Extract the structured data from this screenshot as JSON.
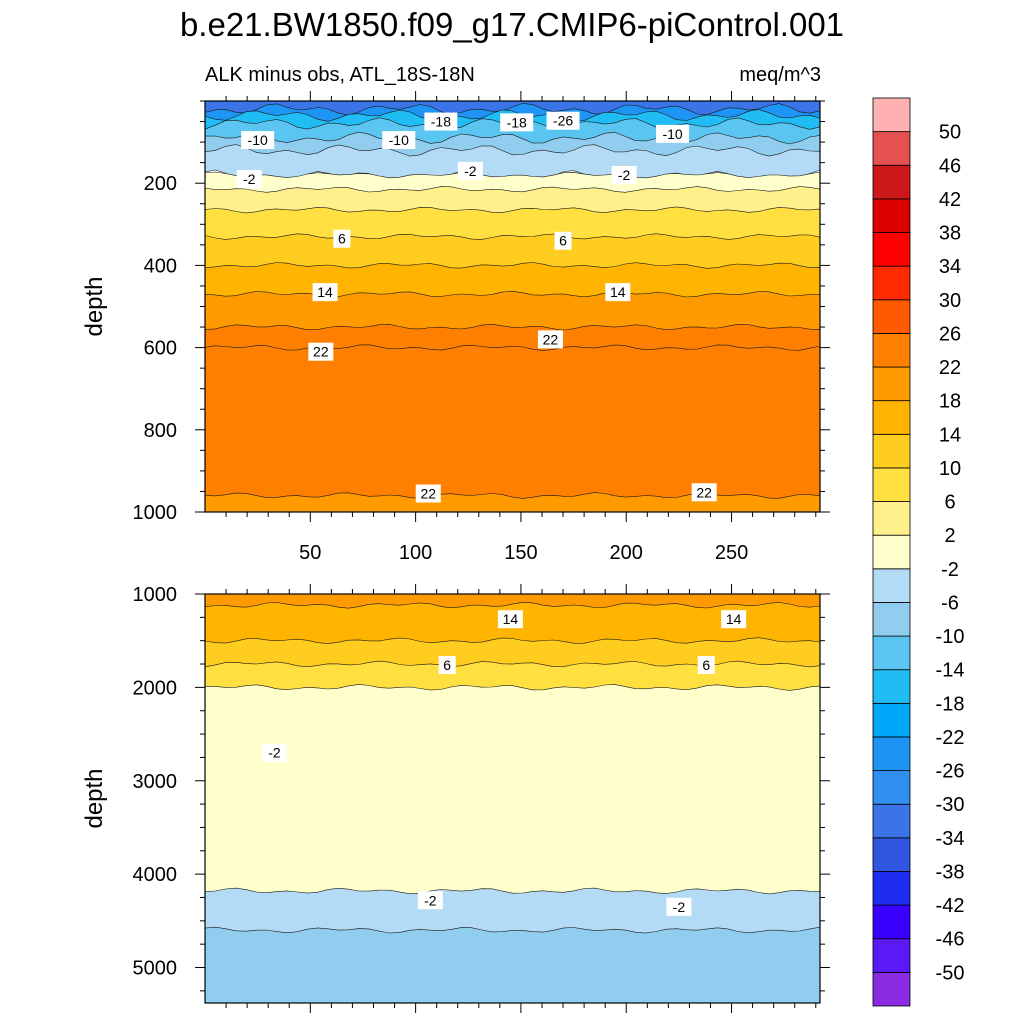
{
  "figure": {
    "title": "b.e21.BW1850.f09_g17.CMIP6-piControl.001",
    "left_string": "ALK minus obs, ATL_18S-18N",
    "right_string": "meq/m^3"
  },
  "chart_data": [
    {
      "type": "heatmap",
      "panel": "upper",
      "xlabel": "",
      "ylabel": "depth",
      "xlim": [
        0,
        292
      ],
      "ylim": [
        1000,
        0
      ],
      "xticks": [
        50,
        100,
        150,
        200,
        250
      ],
      "yticks": [
        200,
        400,
        600,
        800,
        1000
      ],
      "contour_bands": [
        {
          "from": 0,
          "to": 20,
          "level": -34
        },
        {
          "from": 20,
          "to": 35,
          "level": -26
        },
        {
          "from": 35,
          "to": 55,
          "level": -18
        },
        {
          "from": 55,
          "to": 90,
          "level": -14
        },
        {
          "from": 90,
          "to": 120,
          "level": -10
        },
        {
          "from": 120,
          "to": 180,
          "level": -6
        },
        {
          "from": 180,
          "to": 215,
          "level": -2
        },
        {
          "from": 215,
          "to": 265,
          "level": 2
        },
        {
          "from": 265,
          "to": 330,
          "level": 6
        },
        {
          "from": 330,
          "to": 400,
          "level": 10
        },
        {
          "from": 400,
          "to": 470,
          "level": 14
        },
        {
          "from": 470,
          "to": 550,
          "level": 18
        },
        {
          "from": 550,
          "to": 600,
          "level": 22
        },
        {
          "from": 600,
          "to": 960,
          "level": 22
        },
        {
          "from": 960,
          "to": 1000,
          "level": 18
        }
      ],
      "contour_labels": [
        {
          "x": 25,
          "y": 95,
          "text": "-10"
        },
        {
          "x": 92,
          "y": 95,
          "text": "-10"
        },
        {
          "x": 112,
          "y": 50,
          "text": "-18"
        },
        {
          "x": 148,
          "y": 52,
          "text": "-18"
        },
        {
          "x": 170,
          "y": 48,
          "text": "-26"
        },
        {
          "x": 222,
          "y": 80,
          "text": "-10"
        },
        {
          "x": 21,
          "y": 190,
          "text": "-2"
        },
        {
          "x": 126,
          "y": 170,
          "text": "-2"
        },
        {
          "x": 199,
          "y": 180,
          "text": "-2"
        },
        {
          "x": 65,
          "y": 335,
          "text": "6"
        },
        {
          "x": 170,
          "y": 340,
          "text": "6"
        },
        {
          "x": 57,
          "y": 465,
          "text": "14"
        },
        {
          "x": 196,
          "y": 465,
          "text": "14"
        },
        {
          "x": 55,
          "y": 610,
          "text": "22"
        },
        {
          "x": 164,
          "y": 580,
          "text": "22"
        },
        {
          "x": 106,
          "y": 955,
          "text": "22"
        },
        {
          "x": 237,
          "y": 952,
          "text": "22"
        }
      ]
    },
    {
      "type": "heatmap",
      "panel": "lower",
      "xlabel": "",
      "ylabel": "depth",
      "xlim": [
        0,
        292
      ],
      "ylim": [
        5380,
        1000
      ],
      "yticks": [
        1000,
        2000,
        3000,
        4000,
        5000
      ],
      "contour_bands": [
        {
          "from": 1000,
          "to": 1120,
          "level": 18
        },
        {
          "from": 1120,
          "to": 1500,
          "level": 14
        },
        {
          "from": 1500,
          "to": 1750,
          "level": 10
        },
        {
          "from": 1750,
          "to": 2000,
          "level": 6
        },
        {
          "from": 2000,
          "to": 4180,
          "level": -2
        },
        {
          "from": 4180,
          "to": 4600,
          "level": -6
        },
        {
          "from": 4600,
          "to": 5380,
          "level": -10
        }
      ],
      "contour_labels": [
        {
          "x": 145,
          "y": 1270,
          "text": "14"
        },
        {
          "x": 251,
          "y": 1270,
          "text": "14"
        },
        {
          "x": 115,
          "y": 1760,
          "text": "6"
        },
        {
          "x": 238,
          "y": 1760,
          "text": "6"
        },
        {
          "x": 33,
          "y": 2700,
          "text": "-2"
        },
        {
          "x": 107,
          "y": 4280,
          "text": "-2"
        },
        {
          "x": 225,
          "y": 4350,
          "text": "-2"
        }
      ]
    },
    {
      "type": "colorbar",
      "levels": [
        "-50",
        "-46",
        "-42",
        "-38",
        "-34",
        "-30",
        "-26",
        "-22",
        "-18",
        "-14",
        "-10",
        "-6",
        "-2",
        "2",
        "6",
        "10",
        "14",
        "18",
        "22",
        "26",
        "30",
        "34",
        "38",
        "42",
        "46",
        "50"
      ],
      "colors": [
        "#8a2be2",
        "#5b1af5",
        "#3a00ff",
        "#1e2cf0",
        "#3056e0",
        "#3a74e6",
        "#2f8fef",
        "#1e95f5",
        "#00a6f8",
        "#20bdf5",
        "#5ac5f0",
        "#90cdef",
        "#b3dbf5",
        "#ffffcc",
        "#fff08c",
        "#ffe040",
        "#ffcc20",
        "#ffb400",
        "#ff9a00",
        "#ff7f00",
        "#ff5a00",
        "#ff2a00",
        "#ff0000",
        "#dc0000",
        "#cc1818",
        "#e55050",
        "#ffb0b0"
      ]
    }
  ]
}
